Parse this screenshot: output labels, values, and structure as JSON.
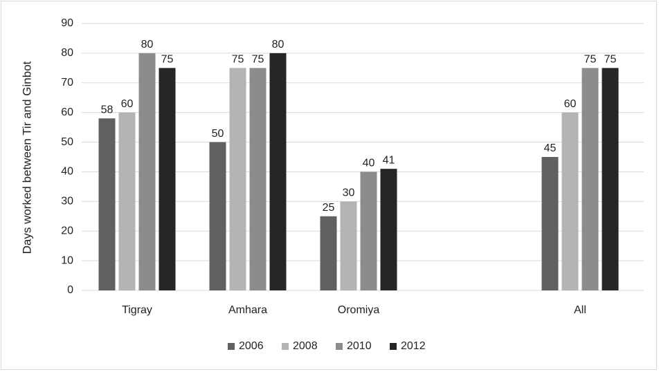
{
  "chart_data": {
    "type": "bar",
    "y_label": "Days worked between Tir and Ginbot",
    "categories": [
      "Tigray",
      "Amhara",
      "Oromiya",
      null,
      "All"
    ],
    "series": [
      {
        "name": "2006",
        "color": "#606060",
        "values": [
          58,
          50,
          25,
          null,
          45
        ]
      },
      {
        "name": "2008",
        "color": "#b3b3b3",
        "values": [
          60,
          75,
          30,
          null,
          60
        ]
      },
      {
        "name": "2010",
        "color": "#8c8c8c",
        "values": [
          80,
          75,
          40,
          null,
          75
        ]
      },
      {
        "name": "2012",
        "color": "#262626",
        "values": [
          75,
          80,
          41,
          null,
          75
        ]
      }
    ],
    "ylim": [
      0,
      90
    ],
    "yticks": [
      0,
      10,
      20,
      30,
      40,
      50,
      60,
      70,
      80,
      90
    ],
    "grid": true,
    "legend": "bottom"
  }
}
